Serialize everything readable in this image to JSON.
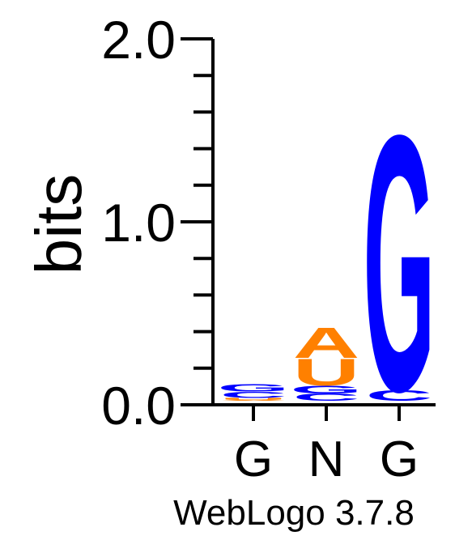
{
  "chart_data": {
    "type": "sequence-logo",
    "ylabel": "bits",
    "ylim": [
      0,
      2.0
    ],
    "y_tick_labels": [
      "0.0",
      "1.0",
      "2.0"
    ],
    "minor_tick_step": 0.2,
    "x_tick_labels": [
      "G",
      "N",
      "G"
    ],
    "colors": {
      "G": "#0000ff",
      "C": "#0000ff",
      "A": "#ff8000",
      "U": "#ff8000"
    },
    "positions": [
      {
        "label": "G",
        "stack": [
          {
            "letter": "A",
            "bits": 0.005
          },
          {
            "letter": "U",
            "bits": 0.01
          },
          {
            "letter": "C",
            "bits": 0.035
          },
          {
            "letter": "G",
            "bits": 0.04
          }
        ]
      },
      {
        "label": "N",
        "stack": [
          {
            "letter": "C",
            "bits": 0.04
          },
          {
            "letter": "G",
            "bits": 0.045
          },
          {
            "letter": "U",
            "bits": 0.15
          },
          {
            "letter": "A",
            "bits": 0.17
          }
        ]
      },
      {
        "label": "G",
        "stack": [
          {
            "letter": "C",
            "bits": 0.06
          },
          {
            "letter": "G",
            "bits": 1.43
          }
        ]
      }
    ]
  },
  "footer": "WebLogo 3.7.8"
}
